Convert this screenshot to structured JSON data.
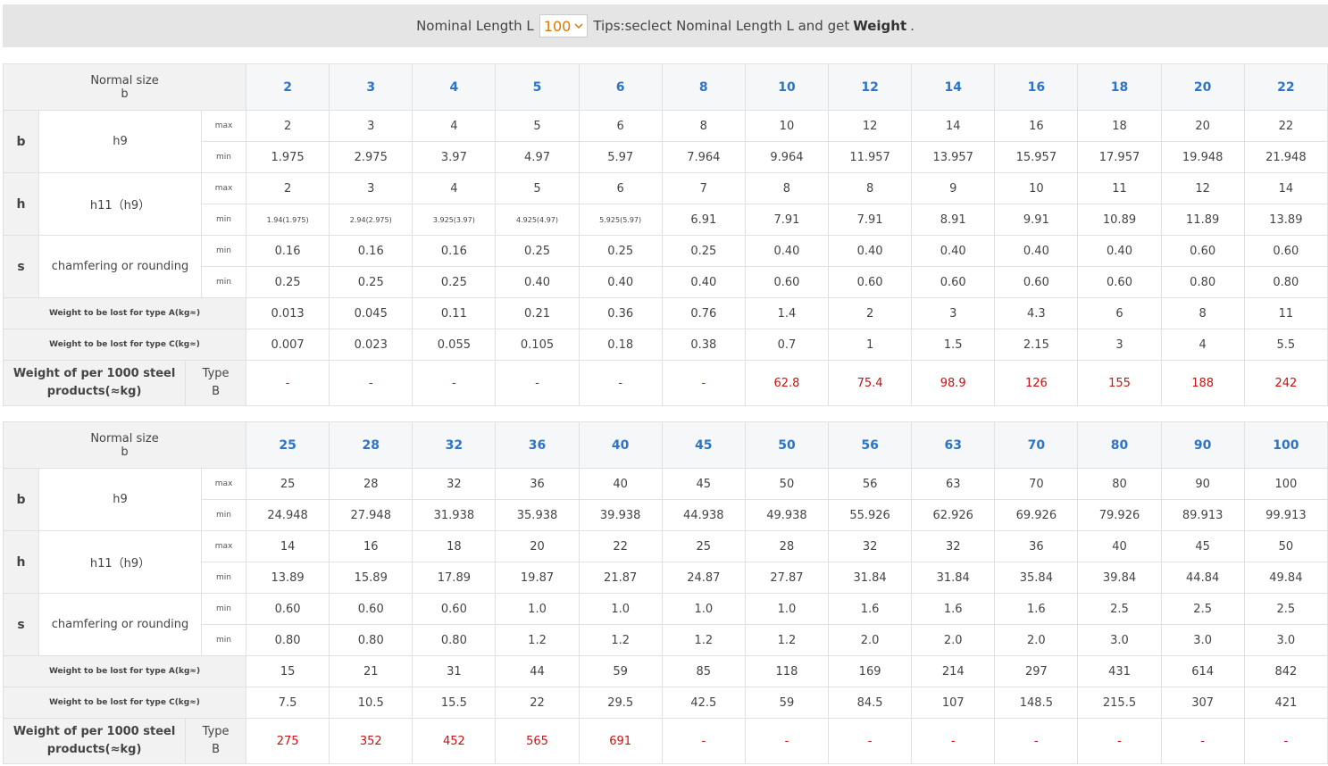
{
  "toolbar": {
    "label": "Nominal Length L",
    "selected": "100",
    "tips": "Tips:seclect Nominal Length L and get",
    "tips_bold": "Weight",
    "tips_end": "."
  },
  "tables": [
    {
      "header": {
        "line1": "Normal size",
        "line2": "b",
        "sizes": [
          "2",
          "3",
          "4",
          "5",
          "6",
          "8",
          "10",
          "12",
          "14",
          "16",
          "18",
          "20",
          "22"
        ]
      },
      "groups": [
        {
          "symbol": "b",
          "name": "h9",
          "rows": [
            {
              "label": "max",
              "values": [
                "2",
                "3",
                "4",
                "5",
                "6",
                "8",
                "10",
                "12",
                "14",
                "16",
                "18",
                "20",
                "22"
              ]
            },
            {
              "label": "min",
              "values": [
                "1.975",
                "2.975",
                "3.97",
                "4.97",
                "5.97",
                "7.964",
                "9.964",
                "11.957",
                "13.957",
                "15.957",
                "17.957",
                "19.948",
                "21.948"
              ]
            }
          ]
        },
        {
          "symbol": "h",
          "name": "h11（h9）",
          "rows": [
            {
              "label": "max",
              "values": [
                "2",
                "3",
                "4",
                "5",
                "6",
                "7",
                "8",
                "8",
                "9",
                "10",
                "11",
                "12",
                "14"
              ]
            },
            {
              "label": "min",
              "values": [
                "1.94(1.975)",
                "2.94(2.975)",
                "3.925(3.97)",
                "4.925(4.97)",
                "5.925(5.97)",
                "6.91",
                "7.91",
                "7.91",
                "8.91",
                "9.91",
                "10.89",
                "11.89",
                "13.89"
              ]
            }
          ]
        },
        {
          "symbol": "s",
          "name": "chamfering or rounding",
          "rows": [
            {
              "label": "min",
              "values": [
                "0.16",
                "0.16",
                "0.16",
                "0.25",
                "0.25",
                "0.25",
                "0.40",
                "0.40",
                "0.40",
                "0.40",
                "0.40",
                "0.60",
                "0.60"
              ]
            },
            {
              "label": "min",
              "values": [
                "0.25",
                "0.25",
                "0.25",
                "0.40",
                "0.40",
                "0.40",
                "0.60",
                "0.60",
                "0.60",
                "0.60",
                "0.60",
                "0.80",
                "0.80"
              ]
            }
          ]
        }
      ],
      "lost": [
        {
          "label": "Weight to be lost for type A(kg≈)",
          "values": [
            "0.013",
            "0.045",
            "0.11",
            "0.21",
            "0.36",
            "0.76",
            "1.4",
            "2",
            "3",
            "4.3",
            "6",
            "8",
            "11"
          ]
        },
        {
          "label": "Weight to be lost for type C(kg≈)",
          "values": [
            "0.007",
            "0.023",
            "0.055",
            "0.105",
            "0.18",
            "0.38",
            "0.7",
            "1",
            "1.5",
            "2.15",
            "3",
            "4",
            "5.5"
          ]
        }
      ],
      "weight": {
        "label": "Weight of per 1000 steel products(≈kg)",
        "type": "Type B",
        "values": [
          "-",
          "-",
          "-",
          "-",
          "-",
          "-",
          "62.8",
          "75.4",
          "98.9",
          "126",
          "155",
          "188",
          "242"
        ]
      }
    },
    {
      "header": {
        "line1": "Normal size",
        "line2": "b",
        "sizes": [
          "25",
          "28",
          "32",
          "36",
          "40",
          "45",
          "50",
          "56",
          "63",
          "70",
          "80",
          "90",
          "100"
        ]
      },
      "groups": [
        {
          "symbol": "b",
          "name": "h9",
          "rows": [
            {
              "label": "max",
              "values": [
                "25",
                "28",
                "32",
                "36",
                "40",
                "45",
                "50",
                "56",
                "63",
                "70",
                "80",
                "90",
                "100"
              ]
            },
            {
              "label": "min",
              "values": [
                "24.948",
                "27.948",
                "31.938",
                "35.938",
                "39.938",
                "44.938",
                "49.938",
                "55.926",
                "62.926",
                "69.926",
                "79.926",
                "89.913",
                "99.913"
              ]
            }
          ]
        },
        {
          "symbol": "h",
          "name": "h11（h9）",
          "rows": [
            {
              "label": "max",
              "values": [
                "14",
                "16",
                "18",
                "20",
                "22",
                "25",
                "28",
                "32",
                "32",
                "36",
                "40",
                "45",
                "50"
              ]
            },
            {
              "label": "min",
              "values": [
                "13.89",
                "15.89",
                "17.89",
                "19.87",
                "21.87",
                "24.87",
                "27.87",
                "31.84",
                "31.84",
                "35.84",
                "39.84",
                "44.84",
                "49.84"
              ]
            }
          ]
        },
        {
          "symbol": "s",
          "name": "chamfering or rounding",
          "rows": [
            {
              "label": "min",
              "values": [
                "0.60",
                "0.60",
                "0.60",
                "1.0",
                "1.0",
                "1.0",
                "1.0",
                "1.6",
                "1.6",
                "1.6",
                "2.5",
                "2.5",
                "2.5"
              ]
            },
            {
              "label": "min",
              "values": [
                "0.80",
                "0.80",
                "0.80",
                "1.2",
                "1.2",
                "1.2",
                "1.2",
                "2.0",
                "2.0",
                "2.0",
                "3.0",
                "3.0",
                "3.0"
              ]
            }
          ]
        }
      ],
      "lost": [
        {
          "label": "Weight to be lost for type A(kg≈)",
          "values": [
            "15",
            "21",
            "31",
            "44",
            "59",
            "85",
            "118",
            "169",
            "214",
            "297",
            "431",
            "614",
            "842"
          ]
        },
        {
          "label": "Weight to be lost for type C(kg≈)",
          "values": [
            "7.5",
            "10.5",
            "15.5",
            "22",
            "29.5",
            "42.5",
            "59",
            "84.5",
            "107",
            "148.5",
            "215.5",
            "307",
            "421"
          ]
        }
      ],
      "weight": {
        "label": "Weight of per 1000 steel products(≈kg)",
        "type": "Type B",
        "values": [
          "275",
          "352",
          "452",
          "565",
          "691",
          "-",
          "-",
          "-",
          "-",
          "-",
          "-",
          "-",
          "-"
        ]
      }
    }
  ]
}
